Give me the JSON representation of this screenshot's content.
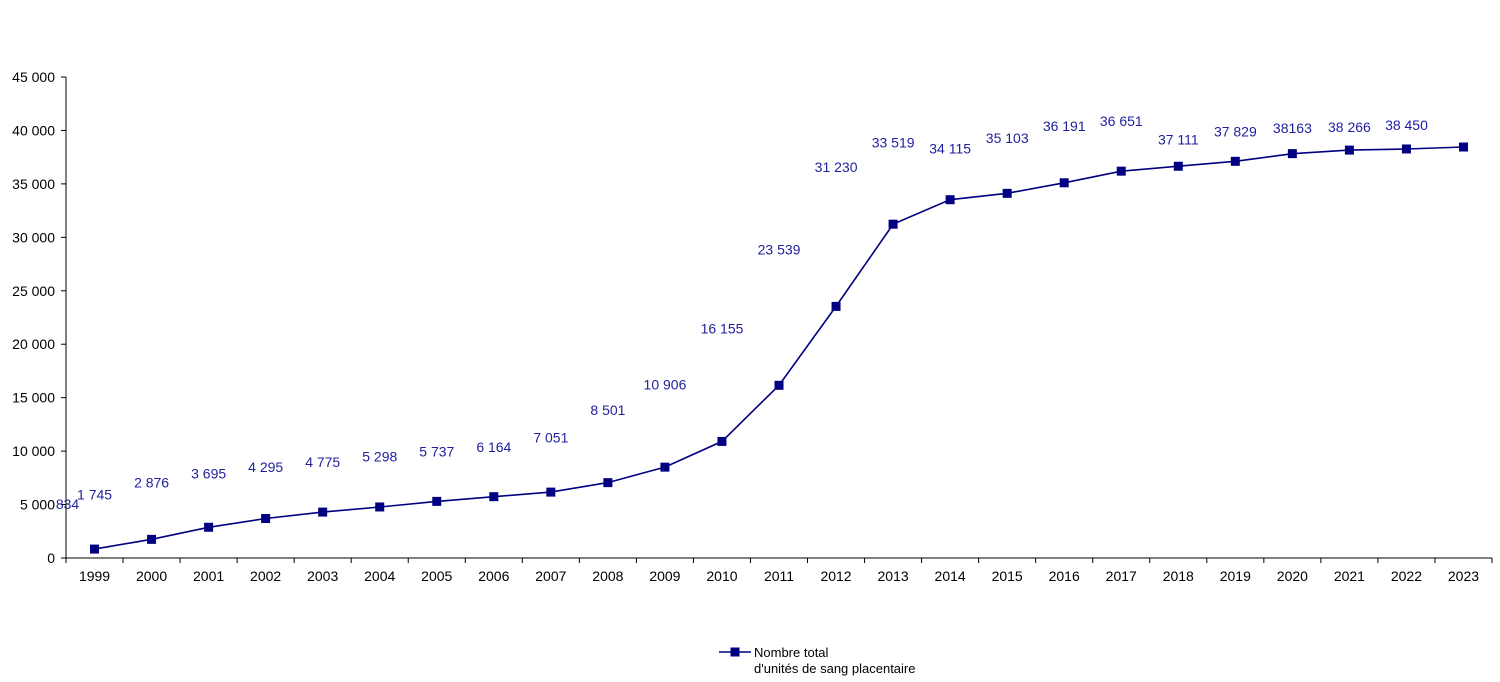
{
  "chart_data": {
    "type": "line",
    "x": [
      "1999",
      "2000",
      "2001",
      "2002",
      "2003",
      "2004",
      "2005",
      "2006",
      "2007",
      "2008",
      "2009",
      "2010",
      "2011",
      "2012",
      "2013",
      "2014",
      "2015",
      "2016",
      "2017",
      "2018",
      "2019",
      "2020",
      "2021",
      "2022",
      "2023"
    ],
    "series": [
      {
        "name": "Nombre total\nd'unités de sang placentaire",
        "name_lines": [
          "Nombre total",
          "d'unités de sang placentaire"
        ],
        "values": [
          834,
          1745,
          2876,
          3695,
          4295,
          4775,
          5298,
          5737,
          6164,
          7051,
          8501,
          10906,
          16155,
          23539,
          31230,
          33519,
          34115,
          35103,
          36191,
          36651,
          37111,
          37829,
          38163,
          38266,
          38450
        ],
        "labels": [
          "834",
          "1 745",
          "2 876",
          "3 695",
          "4 295",
          "4 775",
          "5 298",
          "5 737",
          "6 164",
          "7 051",
          "8 501",
          "10 906",
          "16 155",
          "23 539",
          "31 230",
          "33 519",
          "34 115",
          "35 103",
          "36 191",
          "36 651",
          "37 111",
          "37 829",
          "38163",
          "38 266",
          "38 450"
        ],
        "color": "#000080"
      }
    ],
    "y_ticks": [
      0,
      5000,
      10000,
      15000,
      20000,
      25000,
      30000,
      35000,
      40000,
      45000
    ],
    "y_tick_labels": [
      "0",
      "5 000",
      "10 000",
      "15 000",
      "20 000",
      "25 000",
      "30 000",
      "35 000",
      "40 000",
      "45 000"
    ],
    "ylim": [
      0,
      45000
    ],
    "title": "",
    "xlabel": "",
    "ylabel": "",
    "grid": false,
    "legend_position": "bottom-center",
    "label_color": "#1f1f9f"
  }
}
